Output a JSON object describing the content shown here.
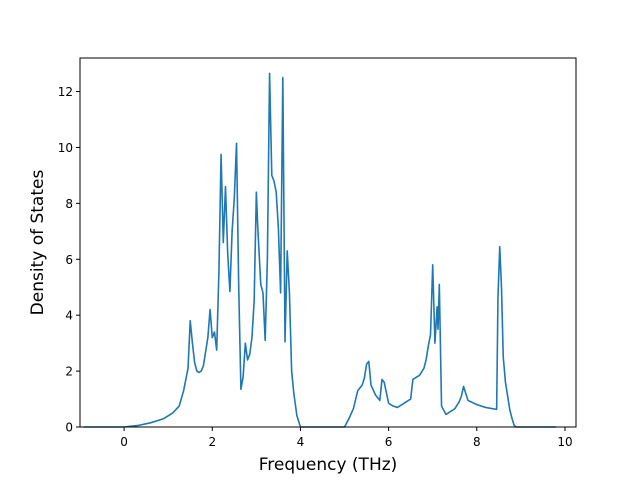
{
  "chart_data": {
    "type": "line",
    "xlabel": "Frequency (THz)",
    "ylabel": "Density of States",
    "xlim": [
      -1.0,
      10.25
    ],
    "ylim": [
      0,
      13.2
    ],
    "x_ticks": [
      0,
      2,
      4,
      6,
      8,
      10
    ],
    "y_ticks": [
      0,
      2,
      4,
      6,
      8,
      10,
      12
    ],
    "x_tick_labels": [
      "0",
      "2",
      "4",
      "6",
      "8",
      "10"
    ],
    "y_tick_labels": [
      "0",
      "2",
      "4",
      "6",
      "8",
      "10",
      "12"
    ],
    "grid": false,
    "legend": "none",
    "line_color": "#1f77b4",
    "series": [
      {
        "x": [
          -0.92,
          -0.5,
          0.0,
          0.3,
          0.6,
          0.9,
          1.1,
          1.25,
          1.35,
          1.45,
          1.5,
          1.55,
          1.6,
          1.65,
          1.7,
          1.75,
          1.8,
          1.85,
          1.9,
          1.95,
          2.0,
          2.05,
          2.1,
          2.15,
          2.2,
          2.25,
          2.3,
          2.35,
          2.4,
          2.45,
          2.5,
          2.55,
          2.6,
          2.65,
          2.7,
          2.75,
          2.8,
          2.85,
          2.9,
          2.95,
          3.0,
          3.03,
          3.1,
          3.15,
          3.2,
          3.25,
          3.3,
          3.35,
          3.4,
          3.45,
          3.5,
          3.55,
          3.6,
          3.65,
          3.7,
          3.75,
          3.8,
          3.85,
          3.92,
          4.0,
          4.5,
          5.0,
          5.1,
          5.2,
          5.3,
          5.4,
          5.45,
          5.5,
          5.55,
          5.6,
          5.7,
          5.75,
          5.8,
          5.85,
          5.9,
          6.0,
          6.1,
          6.2,
          6.3,
          6.4,
          6.5,
          6.55,
          6.6,
          6.7,
          6.8,
          6.85,
          6.9,
          6.95,
          7.0,
          7.05,
          7.1,
          7.12,
          7.15,
          7.2,
          7.3,
          7.4,
          7.5,
          7.6,
          7.65,
          7.7,
          7.8,
          8.0,
          8.2,
          8.45,
          8.48,
          8.52,
          8.56,
          8.6,
          8.65,
          8.7,
          8.75,
          8.8,
          8.85,
          8.9,
          9.0,
          9.5,
          9.8
        ],
        "y": [
          0,
          0,
          0,
          0.05,
          0.15,
          0.3,
          0.5,
          0.75,
          1.3,
          2.1,
          3.8,
          3.0,
          2.3,
          2.0,
          1.95,
          2.0,
          2.2,
          2.7,
          3.2,
          4.2,
          3.2,
          3.4,
          2.75,
          5.5,
          9.75,
          6.6,
          8.6,
          6.2,
          4.85,
          7.0,
          8.2,
          10.15,
          5.0,
          1.35,
          1.8,
          3.0,
          2.4,
          2.6,
          3.2,
          4.5,
          8.4,
          7.2,
          5.1,
          4.8,
          3.1,
          6.0,
          12.65,
          9.0,
          8.8,
          8.4,
          7.1,
          4.8,
          12.5,
          3.05,
          6.3,
          4.8,
          2.0,
          1.2,
          0.4,
          0,
          0,
          0,
          0.3,
          0.65,
          1.3,
          1.5,
          1.75,
          2.25,
          2.35,
          1.5,
          1.15,
          1.05,
          0.95,
          1.7,
          1.6,
          0.85,
          0.75,
          0.7,
          0.8,
          0.9,
          1.0,
          1.7,
          1.75,
          1.85,
          2.1,
          2.4,
          2.9,
          3.3,
          5.8,
          3.0,
          4.3,
          3.5,
          5.1,
          0.75,
          0.45,
          0.55,
          0.65,
          0.9,
          1.1,
          1.45,
          0.95,
          0.8,
          0.7,
          0.63,
          4.6,
          6.45,
          5.0,
          2.5,
          1.6,
          1.1,
          0.6,
          0.3,
          0.05,
          0,
          0,
          0,
          0
        ]
      }
    ]
  }
}
